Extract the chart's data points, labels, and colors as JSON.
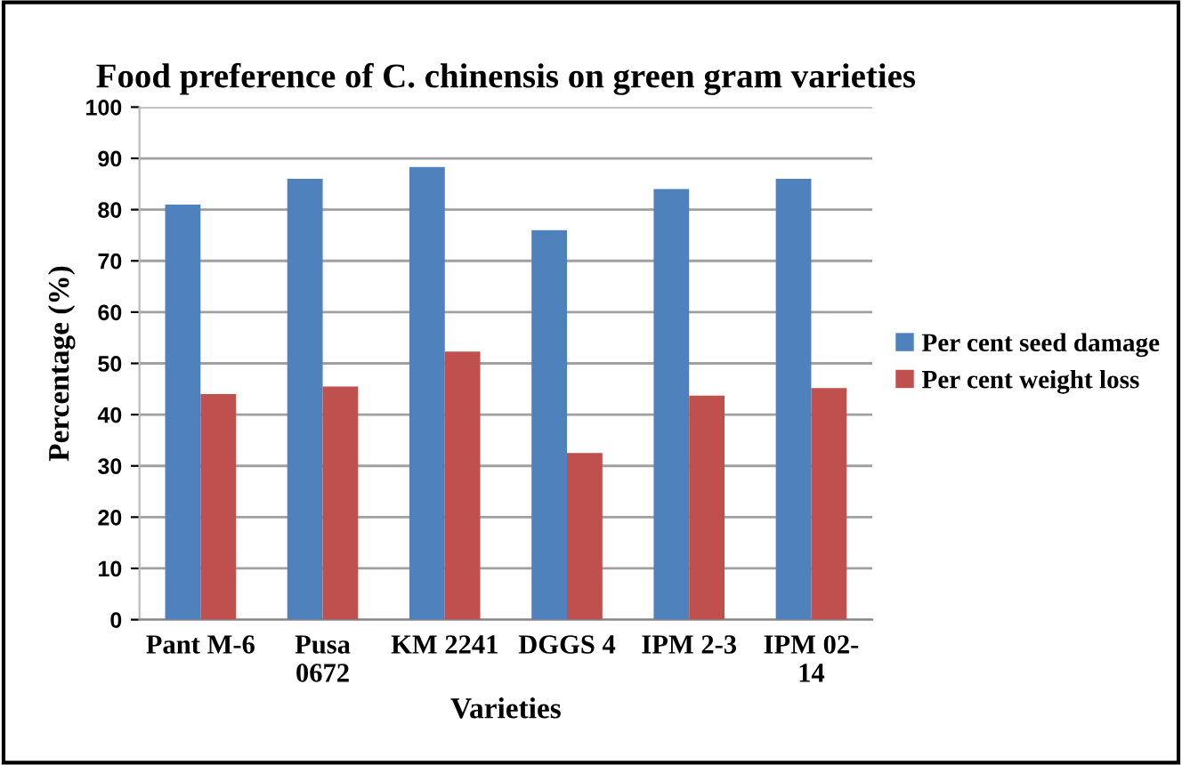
{
  "chart_data": {
    "type": "bar",
    "title": "Food preference of C. chinensis on green gram varieties",
    "xlabel": "Varieties",
    "ylabel": "Percentage (%)",
    "categories": [
      "Pant M-6",
      "Pusa\n0672",
      "KM 2241",
      "DGGS 4",
      "IPM 2-3",
      "IPM 02-\n14"
    ],
    "series": [
      {
        "name": "Per cent seed damage",
        "color": "#4f81bd",
        "values": [
          81,
          86,
          88.3,
          76,
          84,
          86
        ]
      },
      {
        "name": "Per cent weight loss",
        "color": "#c0504d",
        "values": [
          44,
          45.5,
          52.3,
          32.5,
          43.7,
          45.2
        ]
      }
    ],
    "ylim": [
      0,
      100
    ],
    "yticks": [
      0,
      10,
      20,
      30,
      40,
      50,
      60,
      70,
      80,
      90,
      100
    ],
    "grid": "y",
    "legend": "right"
  }
}
